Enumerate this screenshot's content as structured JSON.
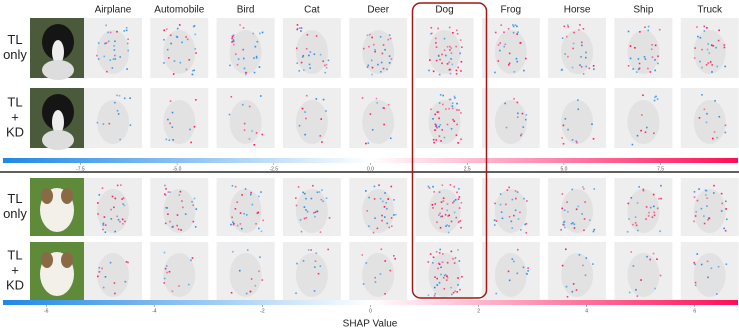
{
  "columns": [
    "Airplane",
    "Automobile",
    "Bird",
    "Cat",
    "Deer",
    "Dog",
    "Frog",
    "Horse",
    "Ship",
    "Truck"
  ],
  "panels": [
    {
      "rows": [
        {
          "label": [
            "TL",
            "only"
          ]
        },
        {
          "label": [
            "TL",
            "+",
            "KD"
          ]
        }
      ],
      "colorbar": {
        "lim": [
          -9.5,
          9.5
        ],
        "ticks": [
          -7.5,
          {
            "value": -5.0,
            "label": "-5.0"
          },
          -2.5,
          {
            "value": 0.0,
            "label": "0.0"
          },
          2.5,
          {
            "value": 5.0,
            "label": "5.0"
          },
          7.5
        ]
      }
    },
    {
      "rows": [
        {
          "label": [
            "TL",
            "only"
          ]
        },
        {
          "label": [
            "TL",
            "+",
            "KD"
          ]
        }
      ],
      "colorbar": {
        "lim": [
          -6.8,
          6.8
        ],
        "ticks": [
          -6,
          -4,
          -2,
          0,
          2,
          4,
          6
        ]
      }
    }
  ],
  "colorbar_label": "SHAP Value",
  "colormap": [
    "#1e88e5",
    "#ffffff",
    "#ff0d57"
  ],
  "highlight_column": 5
}
